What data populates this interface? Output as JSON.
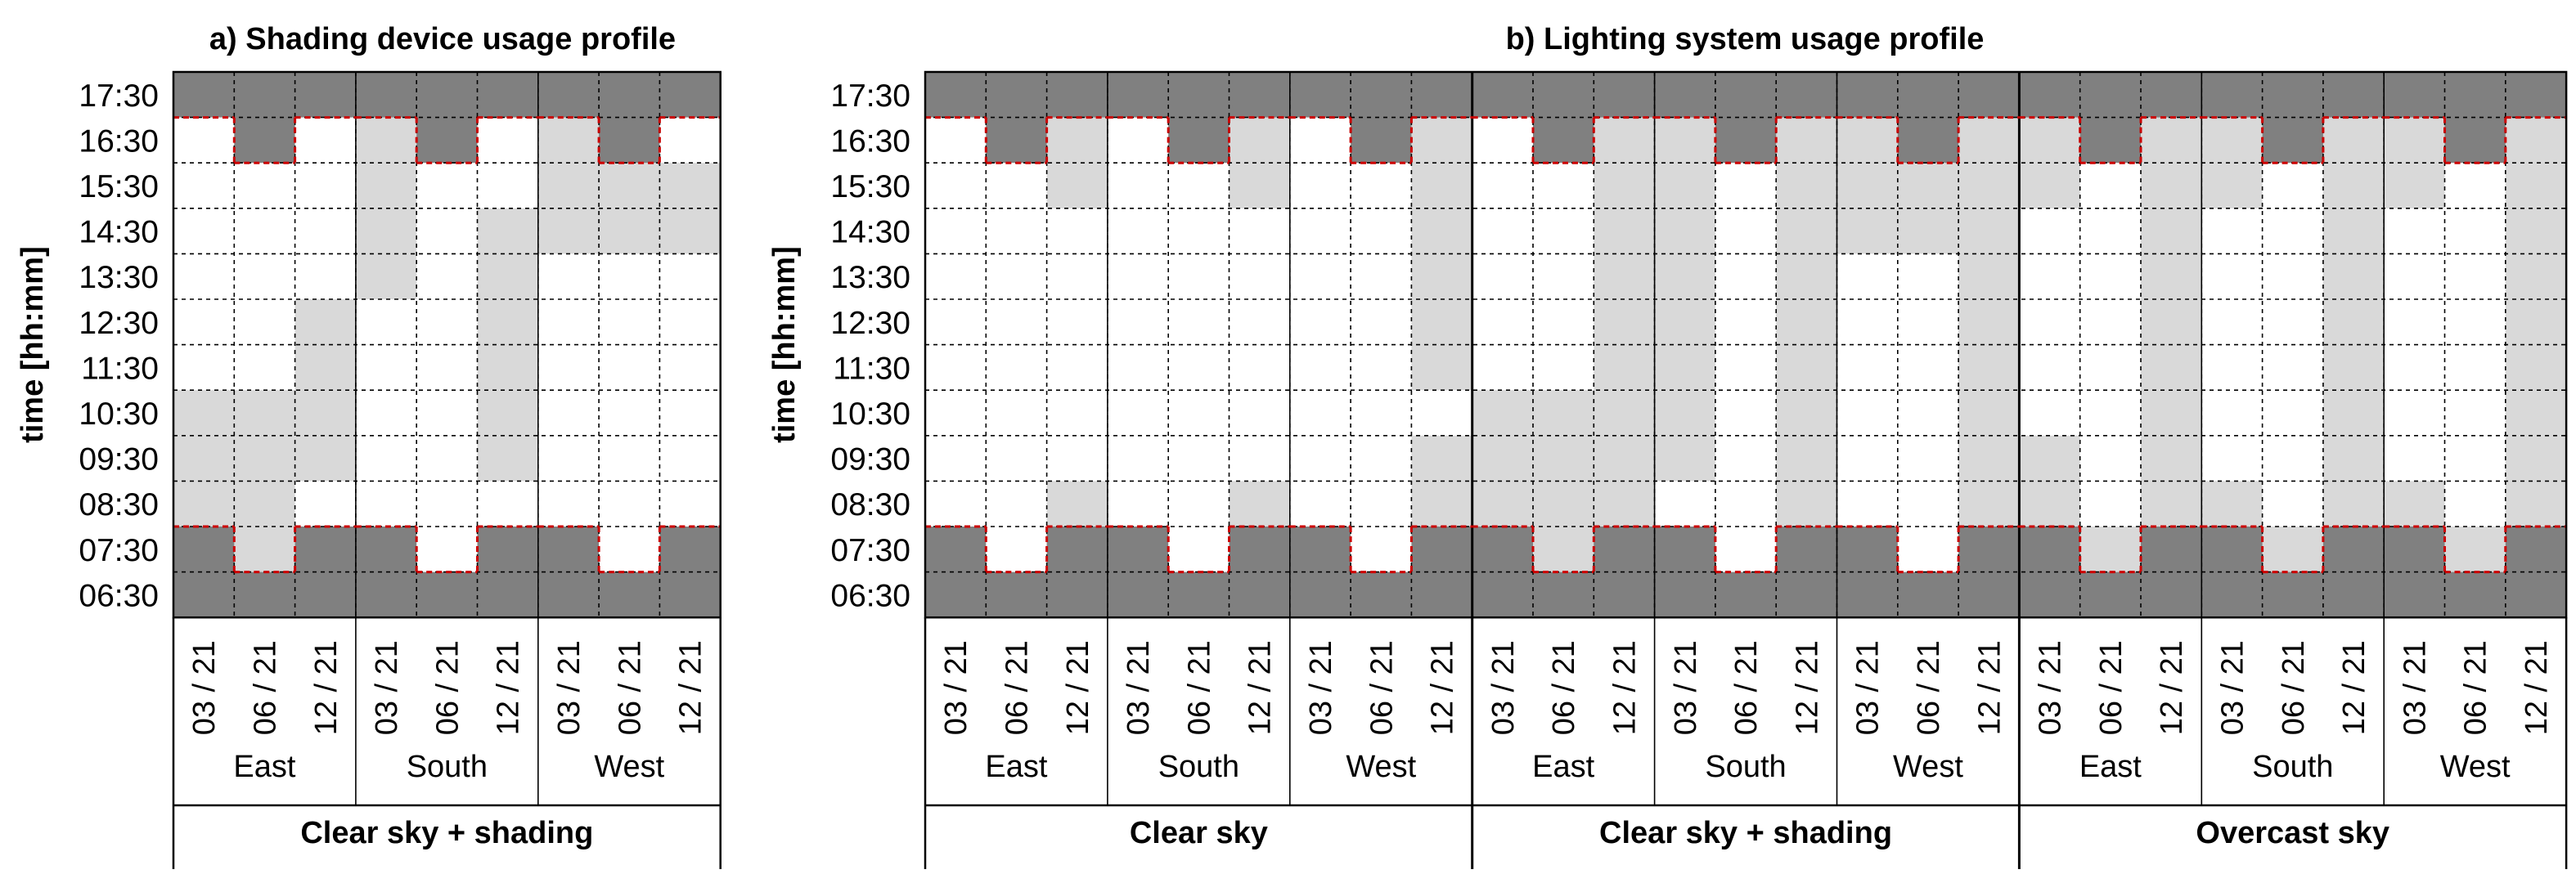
{
  "colors": {
    "outside_hours": "#808080",
    "active": "#d9d9d9",
    "inactive": "#ffffff",
    "work_hours_border": "#cc0000"
  },
  "chart_data": [
    {
      "type": "heatmap",
      "title": "a) Shading device usage profile",
      "ylabel": "time [hh:mm]",
      "y_ticks": [
        "17:30",
        "16:30",
        "15:30",
        "14:30",
        "13:30",
        "12:30",
        "11:30",
        "10:30",
        "09:30",
        "08:30",
        "07:30",
        "06:30"
      ],
      "dates": [
        "03 / 21",
        "06 / 21",
        "12 / 21"
      ],
      "orientations": [
        "East",
        "South",
        "West"
      ],
      "conditions": [
        "Clear sky + shading"
      ],
      "cell_codes": "0 = outside_hours, 1 = active (shading deployed), 2 = inactive",
      "columns": [
        [
          0,
          2,
          2,
          2,
          2,
          2,
          2,
          1,
          1,
          1,
          0,
          0
        ],
        [
          0,
          0,
          2,
          2,
          2,
          2,
          2,
          1,
          1,
          1,
          1,
          0
        ],
        [
          0,
          2,
          2,
          2,
          2,
          1,
          1,
          1,
          1,
          2,
          0,
          0
        ],
        [
          0,
          1,
          1,
          1,
          1,
          2,
          2,
          2,
          2,
          2,
          0,
          0
        ],
        [
          0,
          0,
          2,
          2,
          2,
          2,
          2,
          2,
          2,
          2,
          2,
          0
        ],
        [
          0,
          2,
          2,
          1,
          1,
          1,
          1,
          1,
          1,
          2,
          0,
          0
        ],
        [
          0,
          1,
          1,
          1,
          2,
          2,
          2,
          2,
          2,
          2,
          0,
          0
        ],
        [
          0,
          0,
          1,
          1,
          2,
          2,
          2,
          2,
          2,
          2,
          2,
          0
        ],
        [
          0,
          2,
          1,
          1,
          2,
          2,
          2,
          2,
          2,
          2,
          0,
          0
        ]
      ]
    },
    {
      "type": "heatmap",
      "title": "b) Lighting system usage profile",
      "ylabel": "time [hh:mm]",
      "y_ticks": [
        "17:30",
        "16:30",
        "15:30",
        "14:30",
        "13:30",
        "12:30",
        "11:30",
        "10:30",
        "09:30",
        "08:30",
        "07:30",
        "06:30"
      ],
      "dates": [
        "03 / 21",
        "06 / 21",
        "12 / 21"
      ],
      "orientations": [
        "East",
        "South",
        "West"
      ],
      "conditions": [
        "Clear sky",
        "Clear sky + shading",
        "Overcast sky"
      ],
      "cell_codes": "0 = outside_hours, 1 = active (lights on), 2 = inactive",
      "columns": [
        [
          0,
          2,
          2,
          2,
          2,
          2,
          2,
          2,
          2,
          2,
          0,
          0
        ],
        [
          0,
          0,
          2,
          2,
          2,
          2,
          2,
          2,
          2,
          2,
          2,
          0
        ],
        [
          0,
          1,
          1,
          2,
          2,
          2,
          2,
          2,
          2,
          1,
          0,
          0
        ],
        [
          0,
          2,
          2,
          2,
          2,
          2,
          2,
          2,
          2,
          2,
          0,
          0
        ],
        [
          0,
          0,
          2,
          2,
          2,
          2,
          2,
          2,
          2,
          2,
          2,
          0
        ],
        [
          0,
          1,
          1,
          2,
          2,
          2,
          2,
          2,
          2,
          1,
          0,
          0
        ],
        [
          0,
          2,
          2,
          2,
          2,
          2,
          2,
          2,
          2,
          2,
          0,
          0
        ],
        [
          0,
          0,
          2,
          2,
          2,
          2,
          2,
          2,
          2,
          2,
          2,
          0
        ],
        [
          0,
          1,
          1,
          1,
          1,
          1,
          1,
          2,
          1,
          1,
          0,
          0
        ],
        [
          0,
          2,
          2,
          2,
          2,
          2,
          2,
          1,
          1,
          1,
          0,
          0
        ],
        [
          0,
          0,
          2,
          2,
          2,
          2,
          2,
          1,
          1,
          1,
          1,
          0
        ],
        [
          0,
          1,
          1,
          1,
          1,
          1,
          1,
          1,
          1,
          1,
          0,
          0
        ],
        [
          0,
          1,
          1,
          1,
          1,
          1,
          1,
          1,
          1,
          2,
          0,
          0
        ],
        [
          0,
          0,
          2,
          2,
          2,
          2,
          2,
          2,
          2,
          2,
          2,
          0
        ],
        [
          0,
          1,
          1,
          1,
          1,
          1,
          1,
          1,
          1,
          1,
          0,
          0
        ],
        [
          0,
          1,
          1,
          1,
          2,
          2,
          2,
          2,
          2,
          2,
          0,
          0
        ],
        [
          0,
          0,
          1,
          1,
          2,
          2,
          2,
          2,
          2,
          2,
          2,
          0
        ],
        [
          0,
          1,
          1,
          1,
          1,
          1,
          1,
          1,
          1,
          1,
          0,
          0
        ],
        [
          0,
          1,
          1,
          2,
          2,
          2,
          2,
          2,
          1,
          1,
          0,
          0
        ],
        [
          0,
          0,
          2,
          2,
          2,
          2,
          2,
          2,
          2,
          2,
          1,
          0
        ],
        [
          0,
          1,
          1,
          1,
          1,
          1,
          1,
          1,
          1,
          1,
          0,
          0
        ],
        [
          0,
          1,
          1,
          2,
          2,
          2,
          2,
          2,
          2,
          1,
          0,
          0
        ],
        [
          0,
          0,
          2,
          2,
          2,
          2,
          2,
          2,
          2,
          2,
          1,
          0
        ],
        [
          0,
          1,
          1,
          1,
          1,
          1,
          1,
          1,
          1,
          1,
          0,
          0
        ],
        [
          0,
          1,
          1,
          2,
          2,
          2,
          2,
          2,
          2,
          1,
          0,
          0
        ],
        [
          0,
          0,
          2,
          2,
          2,
          2,
          2,
          2,
          2,
          2,
          1,
          0
        ],
        [
          0,
          1,
          1,
          1,
          1,
          1,
          1,
          1,
          1,
          1,
          0,
          0
        ]
      ]
    }
  ]
}
